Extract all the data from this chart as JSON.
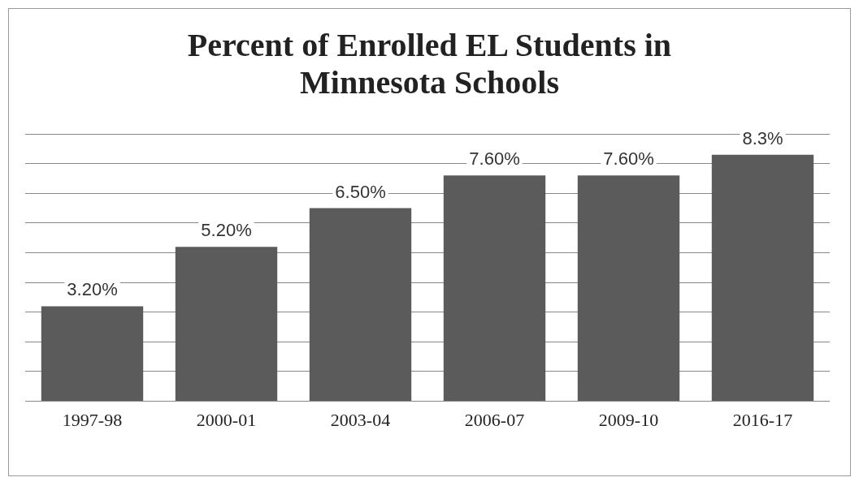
{
  "chart_data": {
    "type": "bar",
    "title": "Percent of Enrolled EL Students in Minnesota Schools",
    "categories": [
      "1997-98",
      "2000-01",
      "2003-04",
      "2006-07",
      "2009-10",
      "2016-17"
    ],
    "values": [
      3.2,
      5.2,
      6.5,
      7.6,
      7.6,
      8.3
    ],
    "value_labels": [
      "3.20%",
      "5.20%",
      "6.50%",
      "7.60%",
      "7.60%",
      "8.3%"
    ],
    "color": "#5b5b5b",
    "ylim": [
      0,
      9
    ],
    "yticks": [
      {
        "value": 0,
        "label": null
      },
      {
        "value": 1,
        "label": null
      },
      {
        "value": 2,
        "label": null
      },
      {
        "value": 3,
        "label": null
      },
      {
        "value": 4,
        "label": null
      },
      {
        "value": 5,
        "label": null
      },
      {
        "value": 6,
        "label": null
      },
      {
        "value": 7,
        "label": null
      },
      {
        "value": 8,
        "label": null
      },
      {
        "value": 9,
        "label": null
      }
    ],
    "tick_labels": "x",
    "grid": "y",
    "legend": false
  }
}
